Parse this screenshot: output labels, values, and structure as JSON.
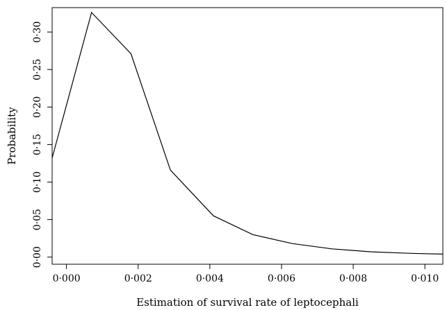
{
  "chart_data": {
    "type": "line",
    "title": "",
    "xlabel": "Estimation of survival rate of leptocephali",
    "ylabel": "Probability",
    "x": [
      -0.0004,
      0.0007,
      0.0018,
      0.0029,
      0.0041,
      0.0052,
      0.0063,
      0.0074,
      0.0085,
      0.0096,
      0.0105
    ],
    "series": [
      {
        "values": [
          0.132,
          0.326,
          0.271,
          0.116,
          0.055,
          0.03,
          0.018,
          0.011,
          0.007,
          0.005,
          0.004
        ]
      }
    ],
    "xticks": [
      0.0,
      0.002,
      0.004,
      0.006,
      0.008,
      0.01
    ],
    "xtick_labels": [
      "0·000",
      "0·002",
      "0·004",
      "0·006",
      "0·008",
      "0·010"
    ],
    "yticks": [
      0.0,
      0.05,
      0.1,
      0.15,
      0.2,
      0.25,
      0.3
    ],
    "ytick_labels": [
      "0·00",
      "0·05",
      "0·10",
      "0·15",
      "0·20",
      "0·25",
      "0·30"
    ],
    "xlim": [
      -0.0004,
      0.0105
    ],
    "ylim": [
      -0.0095,
      0.3325
    ],
    "grid": false,
    "line_color": "#000000"
  }
}
